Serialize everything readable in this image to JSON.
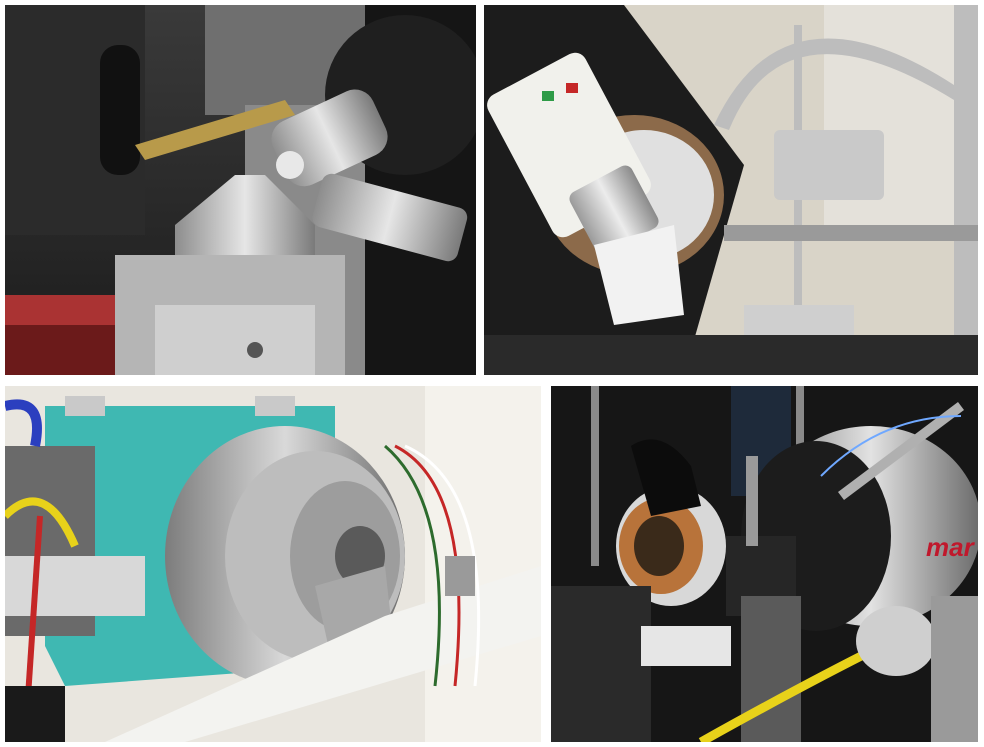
{
  "panels": [
    {
      "id": "top-left",
      "subject": "goniometer-head-with-cryo-nozzle"
    },
    {
      "id": "top-right",
      "subject": "diffractometer-with-camera-and-cryo-line"
    },
    {
      "id": "bottom-left",
      "subject": "teal-vacuum-chamber-with-flange"
    },
    {
      "id": "bottom-right",
      "subject": "beamline-endstation-with-detector"
    }
  ],
  "detector_label": "mar",
  "colors": {
    "background": "#ffffff",
    "aluminum": "#c9c9c9",
    "teal_chamber": "#3fb8b2",
    "copper": "#b8733a",
    "yellow_cable": "#e8d21a",
    "detector_red": "#c0182c"
  }
}
